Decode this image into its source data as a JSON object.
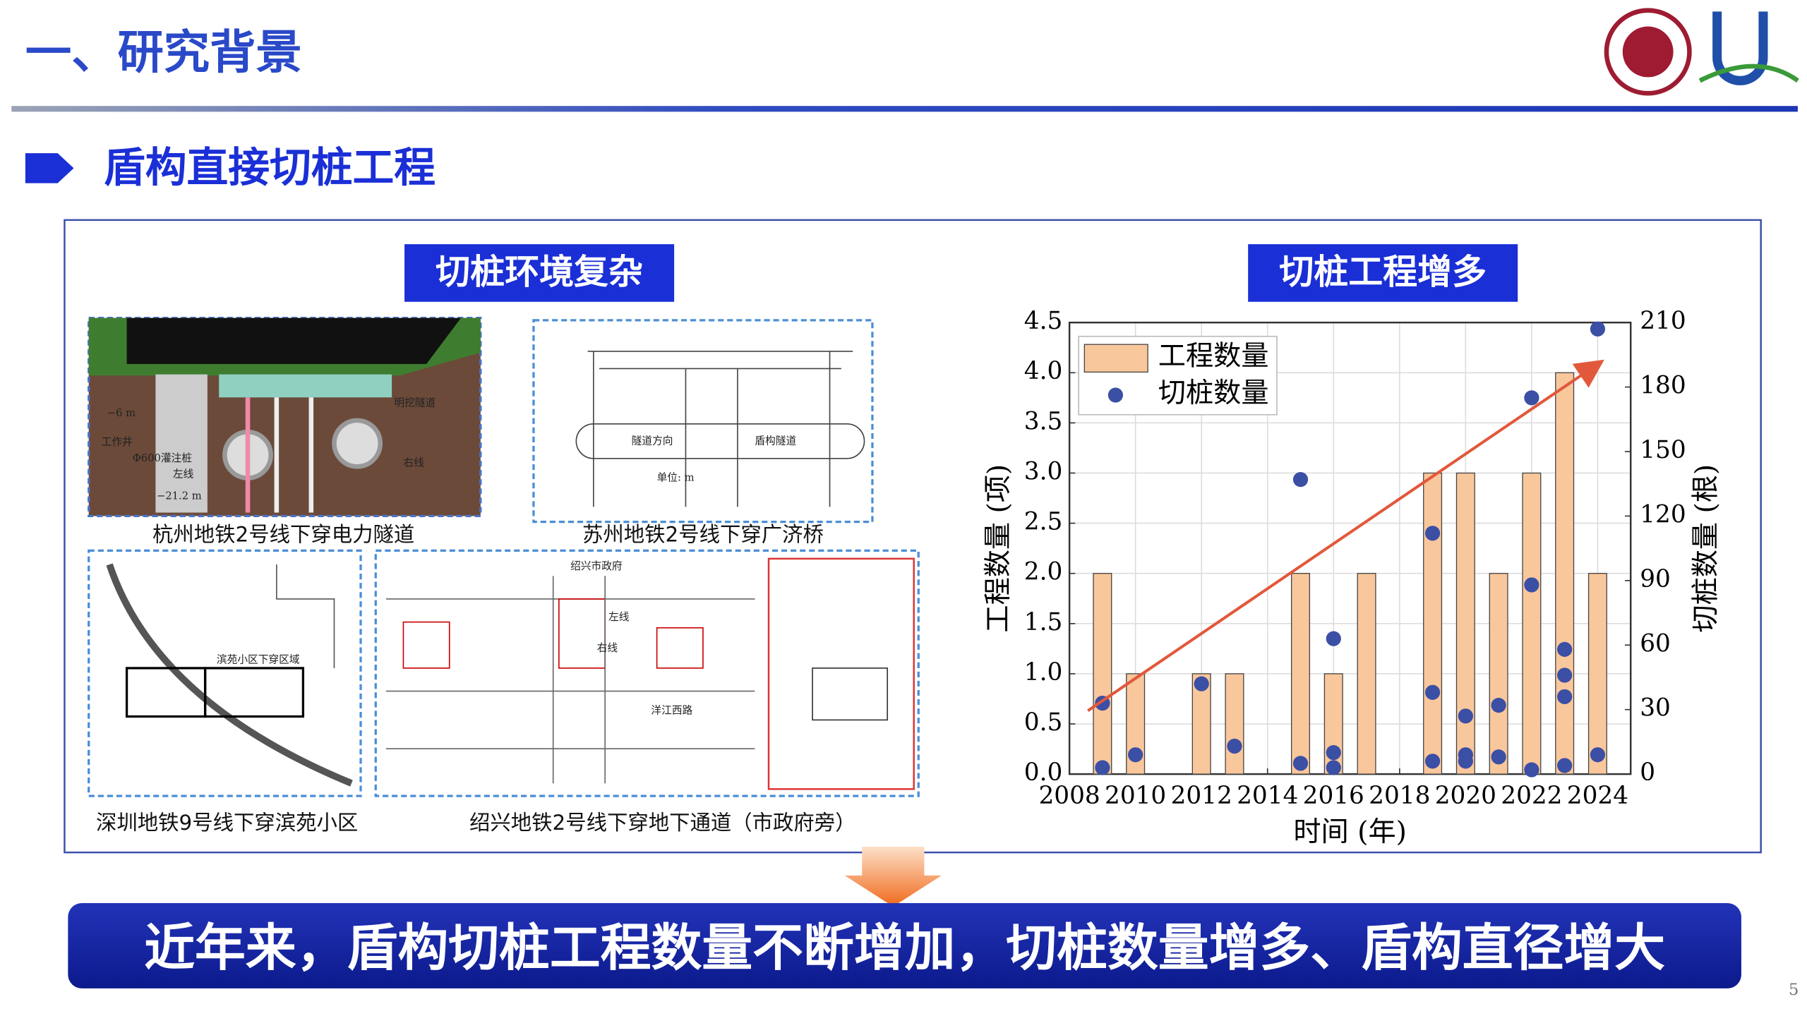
{
  "header": {
    "title": "一、研究背景",
    "section": "盾构直接切桩工程"
  },
  "left_panel": {
    "title": "切桩环境复杂",
    "images": [
      {
        "caption": "杭州地铁2号线下穿电力隧道",
        "labels": [
          "−6 m",
          "工作井",
          "Φ600灌注桩",
          "左线",
          "−21.2 m",
          "明挖隧道",
          "右线"
        ]
      },
      {
        "caption": "苏州地铁2号线下穿广济桥",
        "labels": [
          "隧道方向",
          "盾构隧道",
          "单位: m"
        ]
      },
      {
        "caption": "深圳地铁9号线下穿滨苑小区",
        "labels": [
          "滨苑小区下穿区域"
        ]
      },
      {
        "caption": "绍兴地铁2号线下穿地下通道（市政府旁）",
        "labels": [
          "绍兴市政府",
          "左线",
          "右线",
          "洋江西路"
        ]
      }
    ]
  },
  "right_panel": {
    "title": "切桩工程增多"
  },
  "chart_data": {
    "type": "combo",
    "xlabel": "时间 (年)",
    "ylabel": "工程数量 (项)",
    "y2label": "切桩数量 (根)",
    "xlim": [
      2008,
      2025
    ],
    "xticks": [
      2008,
      2010,
      2012,
      2014,
      2016,
      2018,
      2020,
      2022,
      2024
    ],
    "ylim": [
      0,
      4.5
    ],
    "yticks": [
      {
        "value": 0,
        "label": "0.0"
      },
      {
        "value": 0.5,
        "label": "0.5"
      },
      {
        "value": 1,
        "label": "1.0"
      },
      {
        "value": 1.5,
        "label": "1.5"
      },
      {
        "value": 2,
        "label": "2.0"
      },
      {
        "value": 2.5,
        "label": "2.5"
      },
      {
        "value": 3,
        "label": "3.0"
      },
      {
        "value": 3.5,
        "label": "3.5"
      },
      {
        "value": 4,
        "label": "4.0"
      },
      {
        "value": 4.5,
        "label": "4.5"
      }
    ],
    "y2lim": [
      0,
      210
    ],
    "y2ticks": [
      0,
      30,
      60,
      90,
      120,
      150,
      180,
      210
    ],
    "grid": true,
    "legend": "upper left",
    "series": [
      {
        "name": "工程数量",
        "type": "bar",
        "color": "#f9c79c",
        "x": [
          2009,
          2010,
          2012,
          2013,
          2015,
          2016,
          2017,
          2019,
          2020,
          2021,
          2022,
          2023,
          2024
        ],
        "values": [
          2,
          1,
          1,
          1,
          2,
          1,
          2,
          3,
          3,
          2,
          3,
          4,
          2
        ]
      },
      {
        "name": "切桩数量",
        "type": "scatter",
        "color": "#3b4fa5",
        "axis": "y2",
        "x": [
          2009,
          2009,
          2010,
          2012,
          2013,
          2015,
          2015,
          2016,
          2016,
          2016,
          2019,
          2019,
          2019,
          2020,
          2020,
          2020,
          2021,
          2021,
          2022,
          2022,
          2022,
          2023,
          2023,
          2023,
          2023,
          2024,
          2024
        ],
        "values": [
          33,
          3,
          9,
          42,
          13,
          137,
          5,
          63,
          10,
          3,
          112,
          38,
          6,
          27,
          9,
          6,
          32,
          8,
          175,
          88,
          2,
          58,
          46,
          36,
          4,
          207,
          9
        ]
      }
    ]
  },
  "conclusion": "近年来，盾构切桩工程数量不断增加，切桩数量增多、盾构直径增大",
  "page_number": "5"
}
